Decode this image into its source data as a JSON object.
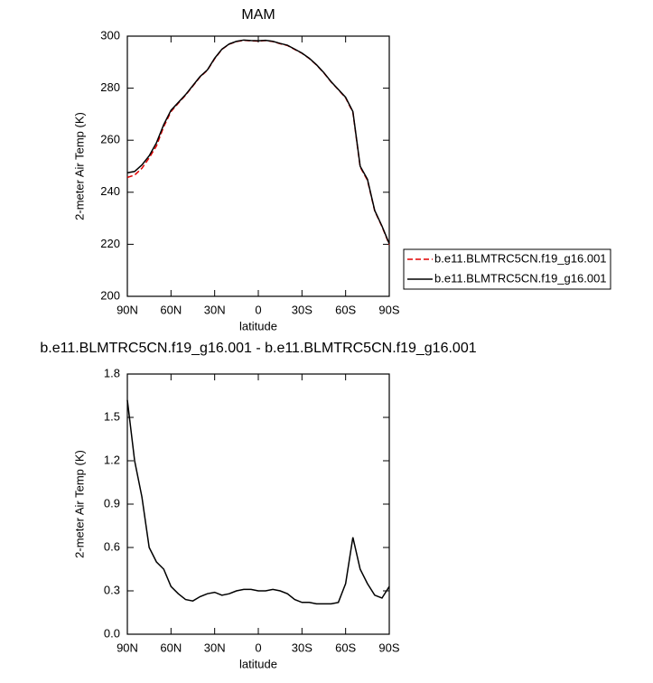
{
  "chart_data": [
    {
      "type": "line",
      "title": "MAM",
      "xlabel": "latitude",
      "ylabel": "2-meter Air Temp (K)",
      "x": [
        90,
        85,
        80,
        75,
        70,
        65,
        60,
        55,
        50,
        45,
        40,
        35,
        30,
        25,
        20,
        15,
        10,
        5,
        0,
        -5,
        -10,
        -15,
        -20,
        -25,
        -30,
        -35,
        -40,
        -45,
        -50,
        -55,
        -60,
        -65,
        -70,
        -75,
        -80,
        -85,
        -90
      ],
      "series": [
        {
          "name": "b.e11.BLMTRC5CN.f19_g16.001",
          "color": "#e00000",
          "linestyle": "dashed",
          "values": [
            245.7,
            246.6,
            249.2,
            253.2,
            257.8,
            265.2,
            271.0,
            274.2,
            277.3,
            280.8,
            284.3,
            286.9,
            291.3,
            294.9,
            296.9,
            297.9,
            298.4,
            298.2,
            298.1,
            298.3,
            297.9,
            297.1,
            296.4,
            294.9,
            293.4,
            291.4,
            288.9,
            285.9,
            282.4,
            279.4,
            276.3,
            270.7,
            249.7,
            244.6,
            232.8,
            226.8,
            219.9
          ]
        },
        {
          "name": "b.e11.BLMTRC5CN.f19_g16.001",
          "color": "#000000",
          "linestyle": "solid",
          "values": [
            247.5,
            248,
            250.5,
            254,
            259,
            266,
            271.5,
            274.5,
            277.5,
            281,
            284.5,
            287,
            291.5,
            295,
            297,
            298,
            298.5,
            298.3,
            298.2,
            298.4,
            298,
            297.2,
            296.5,
            295,
            293.5,
            291.5,
            289,
            286,
            282.5,
            279.5,
            276.5,
            271,
            250,
            245,
            233,
            227,
            220.2
          ]
        }
      ],
      "xlim": [
        90,
        -90
      ],
      "xticks": [
        {
          "value": 90,
          "label": "90N"
        },
        {
          "value": 60,
          "label": "60N"
        },
        {
          "value": 30,
          "label": "30N"
        },
        0,
        {
          "value": -30,
          "label": "30S"
        },
        {
          "value": -60,
          "label": "60S"
        },
        {
          "value": -90,
          "label": "90S"
        }
      ],
      "ylim": [
        200,
        300
      ],
      "yticks": [
        200,
        220,
        240,
        260,
        280,
        300
      ],
      "legend": "right"
    },
    {
      "type": "line",
      "title": "b.e11.BLMTRC5CN.f19_g16.001 - b.e11.BLMTRC5CN.f19_g16.001",
      "xlabel": "latitude",
      "ylabel": "2-meter Air Temp (K)",
      "x": [
        90,
        85,
        80,
        75,
        70,
        65,
        60,
        55,
        50,
        45,
        40,
        35,
        30,
        25,
        20,
        15,
        10,
        5,
        0,
        -5,
        -10,
        -15,
        -20,
        -25,
        -30,
        -35,
        -40,
        -45,
        -50,
        -55,
        -60,
        -65,
        -70,
        -75,
        -80,
        -85,
        -90
      ],
      "series": [
        {
          "color": "#000000",
          "linestyle": "solid",
          "values": [
            1.62,
            1.2,
            0.95,
            0.6,
            0.5,
            0.45,
            0.33,
            0.28,
            0.24,
            0.23,
            0.26,
            0.28,
            0.29,
            0.27,
            0.28,
            0.3,
            0.31,
            0.31,
            0.3,
            0.3,
            0.31,
            0.3,
            0.28,
            0.24,
            0.22,
            0.22,
            0.21,
            0.21,
            0.21,
            0.22,
            0.35,
            0.67,
            0.45,
            0.35,
            0.27,
            0.25,
            0.33
          ]
        }
      ],
      "xlim": [
        90,
        -90
      ],
      "xticks": [
        {
          "value": 90,
          "label": "90N"
        },
        {
          "value": 60,
          "label": "60N"
        },
        {
          "value": 30,
          "label": "30N"
        },
        0,
        {
          "value": -30,
          "label": "30S"
        },
        {
          "value": -60,
          "label": "60S"
        },
        {
          "value": -90,
          "label": "90S"
        }
      ],
      "ylim": [
        0,
        1.8
      ],
      "yticks": [
        {
          "value": 0,
          "label": "0.0"
        },
        0.3,
        0.6,
        0.9,
        1.2,
        1.5,
        1.8
      ]
    }
  ]
}
